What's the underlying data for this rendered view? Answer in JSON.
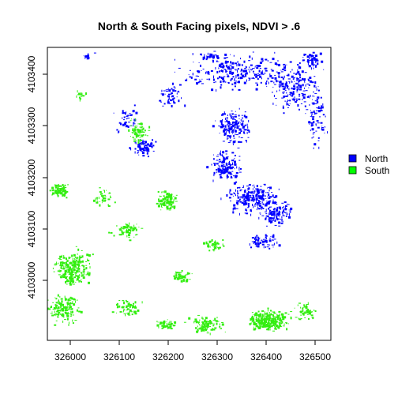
{
  "title": "North & South Facing pixels, NDVI > .6",
  "axes": {
    "x": {
      "ticks": [
        "326000",
        "326100",
        "326200",
        "326300",
        "326400",
        "326500"
      ],
      "range": [
        325955,
        326515
      ]
    },
    "y": {
      "ticks": [
        "4103000",
        "4103100",
        "4103200",
        "4103300",
        "4103400"
      ],
      "range": [
        4102915,
        4103482
      ]
    }
  },
  "legend": {
    "position": "right",
    "items": [
      {
        "label": "North",
        "color": "#0000ff"
      },
      {
        "label": "South",
        "color": "#00ff00"
      }
    ]
  },
  "colors": {
    "north": "#0000ff",
    "south": "#33ee11"
  }
}
